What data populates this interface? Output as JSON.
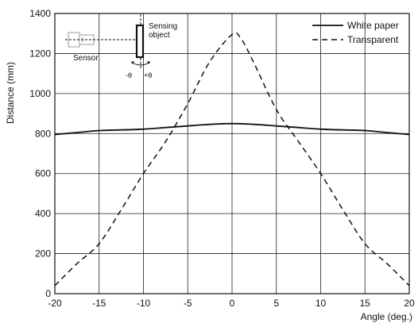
{
  "chart_data": {
    "type": "line",
    "xlabel": "Angle (deg.)",
    "ylabel": "Distance (mm)",
    "xlim": [
      -20,
      20
    ],
    "ylim": [
      0,
      1400
    ],
    "xticks": [
      -20,
      -15,
      -10,
      -5,
      0,
      5,
      10,
      15,
      20
    ],
    "yticks": [
      0,
      200,
      400,
      600,
      800,
      1000,
      1200,
      1400
    ],
    "grid": true,
    "legend_position": "top-right",
    "series": [
      {
        "name": "White paper",
        "line_style": "solid",
        "color": "#111111",
        "x": [
          -20,
          -17.5,
          -15,
          -12.5,
          -10,
          -7.5,
          -5,
          -2.5,
          0,
          2.5,
          5,
          7.5,
          10,
          12.5,
          15,
          17.5,
          20
        ],
        "y": [
          795,
          805,
          815,
          818,
          822,
          830,
          838,
          846,
          850,
          846,
          838,
          830,
          822,
          818,
          815,
          805,
          795
        ]
      },
      {
        "name": "Transparent",
        "line_style": "dashed",
        "color": "#111111",
        "x": [
          -20,
          -17.5,
          -15,
          -12.5,
          -10,
          -7.5,
          -5,
          -2.5,
          0,
          1,
          2.5,
          5,
          7.5,
          10,
          12.5,
          15,
          17.5,
          20
        ],
        "y": [
          40,
          150,
          250,
          420,
          600,
          760,
          950,
          1160,
          1295,
          1275,
          1150,
          920,
          760,
          600,
          420,
          250,
          150,
          40
        ]
      }
    ],
    "inset": {
      "sensor_label": "Sensor",
      "object_label_line1": "Sensing",
      "object_label_line2": "object",
      "minus_theta": "-θ",
      "plus_theta": "+θ"
    }
  }
}
